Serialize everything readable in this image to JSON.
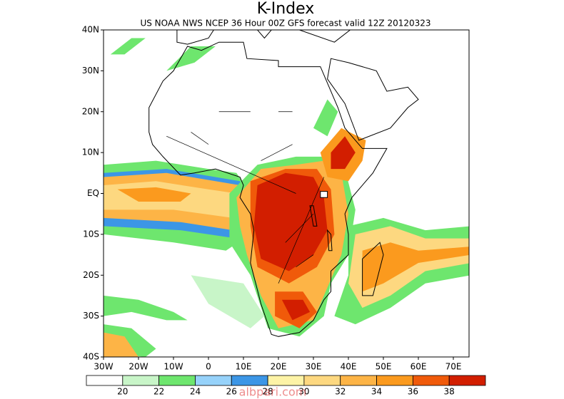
{
  "header": {
    "title": "K-Index",
    "subtitle": "US NOAA NWS NCEP 36 Hour 00Z GFS forecast valid 12Z 20120323"
  },
  "axes": {
    "lat_labels": [
      "40N",
      "30N",
      "20N",
      "10N",
      "EQ",
      "10S",
      "20S",
      "30S",
      "40S"
    ],
    "lon_labels": [
      "30W",
      "20W",
      "10W",
      "0",
      "10E",
      "20E",
      "30E",
      "40E",
      "50E",
      "60E",
      "70E"
    ]
  },
  "legend": {
    "levels": [
      20,
      22,
      24,
      26,
      28,
      30,
      32,
      34,
      36,
      38
    ],
    "colors": [
      "#ffffff",
      "#c8f5c8",
      "#6ee66e",
      "#96d2fa",
      "#3c96e6",
      "#fdf3a6",
      "#fdd880",
      "#fdb446",
      "#fb9a1e",
      "#f05a0a",
      "#d21e00"
    ]
  },
  "watermark": "albpari.com"
}
